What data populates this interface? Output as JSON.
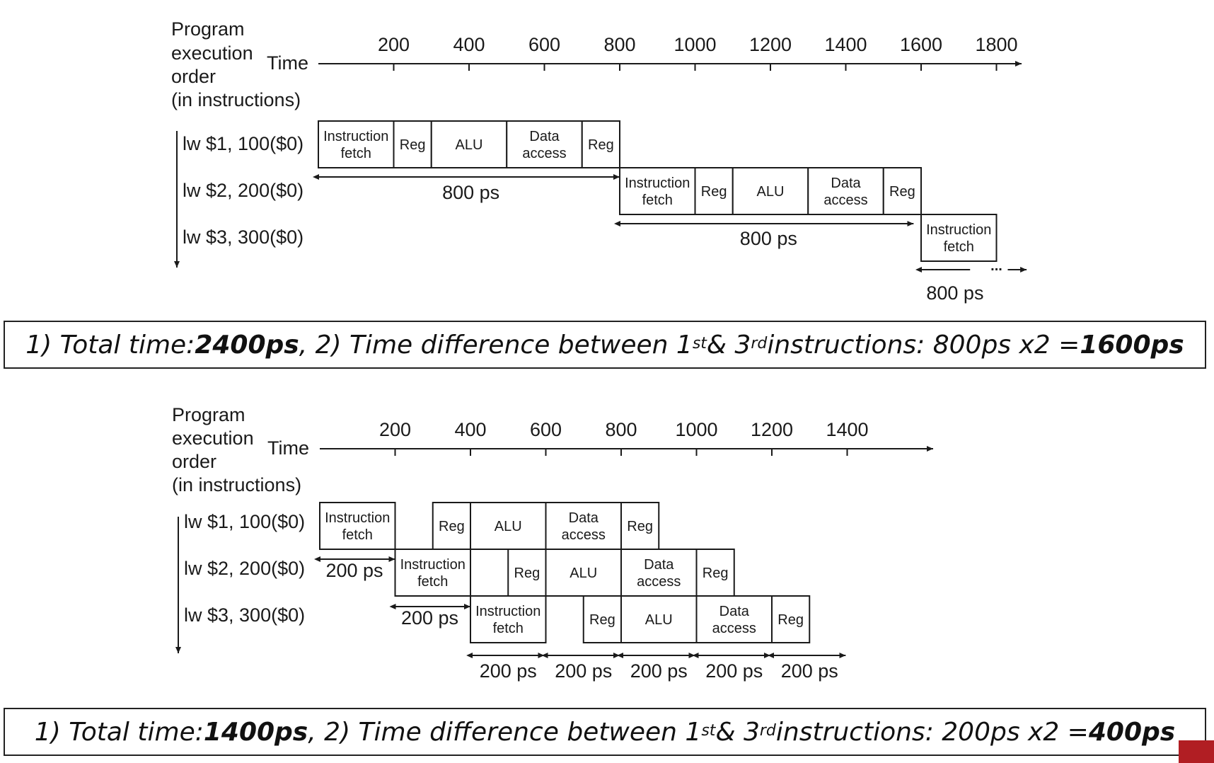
{
  "header": {
    "program_label": [
      "Program",
      "execution",
      "order",
      "(in instructions)"
    ],
    "time_label": "Time"
  },
  "diagram1": {
    "ticks": [
      "200",
      "400",
      "600",
      "800",
      "1000",
      "1200",
      "1400",
      "1600",
      "1800"
    ],
    "instructions": [
      "lw  $1, 100($0)",
      "lw  $2, 200($0)",
      "lw  $3, 300($0)"
    ],
    "stages": [
      "Instruction fetch",
      "Reg",
      "ALU",
      "Data access",
      "Reg"
    ],
    "partial_stage": "Instruction fetch",
    "interval_label": "800 ps",
    "more_marker": "..."
  },
  "summary1": {
    "total_prefix": "1) Total time: ",
    "total_value": "2400ps",
    "diff_prefix": ", 2) Time difference between 1",
    "ord1": "st",
    "amp": " & 3",
    "ord3": "rd",
    "diff_mid": " instructions: 800ps x2 = ",
    "diff_value": "1600ps"
  },
  "diagram2": {
    "ticks": [
      "200",
      "400",
      "600",
      "800",
      "1000",
      "1200",
      "1400"
    ],
    "instructions": [
      "lw  $1, 100($0)",
      "lw  $2, 200($0)",
      "lw  $3, 300($0)"
    ],
    "stages": [
      "Instruction fetch",
      "Reg",
      "ALU",
      "Data access",
      "Reg"
    ],
    "interval_label": "200 ps"
  },
  "summary2": {
    "total_prefix": "1) Total time: ",
    "total_value": "1400ps",
    "diff_prefix": ", 2) Time difference between 1",
    "ord1": "st",
    "amp": " & 3",
    "ord3": "rd",
    "diff_mid": " instructions: 200ps x2 = ",
    "diff_value": "400ps"
  },
  "colors": {
    "corner_accent": "#b11e23"
  }
}
